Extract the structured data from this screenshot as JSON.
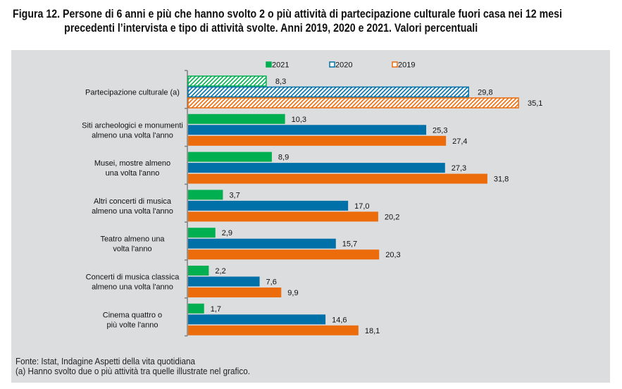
{
  "title": {
    "line1": "Figura 12. Persone di 6 anni e più che hanno svolto 2 o più attività di partecipazione culturale fuori casa nei 12 mesi",
    "line2": "precedenti l’intervista e tipo di attività svolte. Anni 2019, 2020 e 2021. Valori percentuali"
  },
  "chart_data": {
    "type": "bar",
    "orientation": "horizontal",
    "xlim": [
      0,
      35.1
    ],
    "grid": false,
    "legend": "top",
    "categories": [
      [
        "Partecipazione culturale (a)"
      ],
      [
        "Siti archeologici e monumenti",
        "almeno una volta l'anno"
      ],
      [
        "Musei, mostre almeno",
        "una volta l'anno"
      ],
      [
        "Altri concerti di musica",
        "almeno una volta l'anno"
      ],
      [
        "Teatro almeno una",
        "volta l'anno"
      ],
      [
        "Concerti di musica classica",
        "almeno una volta l'anno"
      ],
      [
        "Cinema  quattro o",
        "più volte l'anno"
      ]
    ],
    "series": [
      {
        "name": "2021",
        "color": "#00b050",
        "values": [
          8.3,
          10.3,
          8.9,
          3.7,
          2.9,
          2.2,
          1.7
        ],
        "labels": [
          "8,3",
          "10,3",
          "8,9",
          "3,7",
          "2,9",
          "2,2",
          "1,7"
        ]
      },
      {
        "name": "2020",
        "color": "#0070a8",
        "values": [
          29.8,
          25.3,
          27.3,
          17.0,
          15.7,
          7.6,
          14.6
        ],
        "labels": [
          "29,8",
          "25,3",
          "27,3",
          "17,0",
          "15,7",
          "7,6",
          "14,6"
        ]
      },
      {
        "name": "2019",
        "color": "#ec6c0b",
        "values": [
          35.1,
          27.4,
          31.8,
          20.2,
          20.3,
          9.9,
          18.1
        ],
        "labels": [
          "35,1",
          "27,4",
          "31,8",
          "20,2",
          "20,3",
          "9,9",
          "18,1"
        ]
      }
    ],
    "hatched_category": "Partecipazione culturale (a)"
  },
  "footer": {
    "source": "Fonte: Istat, Indagine Aspetti della vita quotidiana",
    "note": "(a) Hanno svolto due o più attività tra quelle illustrate nel grafico."
  }
}
